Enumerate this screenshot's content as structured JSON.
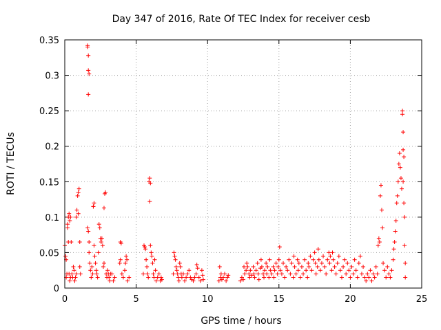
{
  "chart_data": {
    "type": "scatter",
    "title": "Day 347 of 2016, Rate Of TEC Index for receiver cesb",
    "xlabel": "GPS time / hours",
    "ylabel": "ROTI / TECUs",
    "xlim": [
      0,
      25
    ],
    "ylim": [
      0,
      0.35
    ],
    "xticks": [
      0,
      5,
      10,
      15,
      20,
      25
    ],
    "xtick_labels": [
      "0",
      "5",
      "10",
      "15",
      "20",
      "25"
    ],
    "yticks": [
      0,
      0.05,
      0.1,
      0.15,
      0.2,
      0.25,
      0.3,
      0.35
    ],
    "ytick_labels": [
      "0",
      "0.05",
      "0.1",
      "0.15",
      "0.2",
      "0.25",
      "0.3",
      "0.35"
    ],
    "grid": true,
    "marker": "+",
    "color": "#ff0000",
    "series": [
      {
        "name": "ROTI",
        "points": [
          [
            0.0,
            0.06
          ],
          [
            0.05,
            0.045
          ],
          [
            0.1,
            0.04
          ],
          [
            0.1,
            0.015
          ],
          [
            0.15,
            0.02
          ],
          [
            0.2,
            0.085
          ],
          [
            0.2,
            0.09
          ],
          [
            0.25,
            0.1
          ],
          [
            0.25,
            0.065
          ],
          [
            0.3,
            0.105
          ],
          [
            0.3,
            0.02
          ],
          [
            0.35,
            0.095
          ],
          [
            0.35,
            0.01
          ],
          [
            0.4,
            0.1
          ],
          [
            0.4,
            0.015
          ],
          [
            0.45,
            0.065
          ],
          [
            0.5,
            0.02
          ],
          [
            0.55,
            0.015
          ],
          [
            0.6,
            0.03
          ],
          [
            0.65,
            0.025
          ],
          [
            0.7,
            0.01
          ],
          [
            0.75,
            0.015
          ],
          [
            0.8,
            0.02
          ],
          [
            0.8,
            0.1
          ],
          [
            0.85,
            0.11
          ],
          [
            0.9,
            0.13
          ],
          [
            0.95,
            0.135
          ],
          [
            0.95,
            0.105
          ],
          [
            1.0,
            0.14
          ],
          [
            1.05,
            0.03
          ],
          [
            1.05,
            0.065
          ],
          [
            1.1,
            0.02
          ],
          [
            1.6,
            0.34
          ],
          [
            1.6,
            0.342
          ],
          [
            1.65,
            0.328
          ],
          [
            1.65,
            0.307
          ],
          [
            1.7,
            0.302
          ],
          [
            1.65,
            0.273
          ],
          [
            1.6,
            0.085
          ],
          [
            1.65,
            0.08
          ],
          [
            1.7,
            0.065
          ],
          [
            1.7,
            0.05
          ],
          [
            1.75,
            0.035
          ],
          [
            1.8,
            0.025
          ],
          [
            1.85,
            0.015
          ],
          [
            1.9,
            0.03
          ],
          [
            1.95,
            0.02
          ],
          [
            2.0,
            0.115
          ],
          [
            2.0,
            0.115
          ],
          [
            2.05,
            0.12
          ],
          [
            2.05,
            0.06
          ],
          [
            2.1,
            0.045
          ],
          [
            2.15,
            0.035
          ],
          [
            2.2,
            0.025
          ],
          [
            2.25,
            0.02
          ],
          [
            2.3,
            0.015
          ],
          [
            2.35,
            0.05
          ],
          [
            2.4,
            0.09
          ],
          [
            2.45,
            0.085
          ],
          [
            2.5,
            0.07
          ],
          [
            2.55,
            0.065
          ],
          [
            2.6,
            0.07
          ],
          [
            2.65,
            0.06
          ],
          [
            2.7,
            0.03
          ],
          [
            2.75,
            0.035
          ],
          [
            2.75,
            0.113
          ],
          [
            2.8,
            0.133
          ],
          [
            2.85,
            0.135
          ],
          [
            2.9,
            0.02
          ],
          [
            2.95,
            0.015
          ],
          [
            3.0,
            0.025
          ],
          [
            3.05,
            0.02
          ],
          [
            3.1,
            0.015
          ],
          [
            3.15,
            0.01
          ],
          [
            3.2,
            0.02
          ],
          [
            3.3,
            0.02
          ],
          [
            3.4,
            0.01
          ],
          [
            3.5,
            0.015
          ],
          [
            3.85,
            0.035
          ],
          [
            3.9,
            0.04
          ],
          [
            3.9,
            0.065
          ],
          [
            3.95,
            0.063
          ],
          [
            4.0,
            0.02
          ],
          [
            4.1,
            0.015
          ],
          [
            4.2,
            0.025
          ],
          [
            4.25,
            0.035
          ],
          [
            4.3,
            0.045
          ],
          [
            4.35,
            0.04
          ],
          [
            4.4,
            0.01
          ],
          [
            4.5,
            0.015
          ],
          [
            5.5,
            0.02
          ],
          [
            5.55,
            0.06
          ],
          [
            5.6,
            0.058
          ],
          [
            5.65,
            0.055
          ],
          [
            5.7,
            0.04
          ],
          [
            5.75,
            0.03
          ],
          [
            5.8,
            0.02
          ],
          [
            5.85,
            0.015
          ],
          [
            5.9,
            0.15
          ],
          [
            5.95,
            0.155
          ],
          [
            6.0,
            0.148
          ],
          [
            5.95,
            0.122
          ],
          [
            6.0,
            0.06
          ],
          [
            6.05,
            0.05
          ],
          [
            6.1,
            0.045
          ],
          [
            6.15,
            0.035
          ],
          [
            6.2,
            0.02
          ],
          [
            6.25,
            0.015
          ],
          [
            6.3,
            0.04
          ],
          [
            6.35,
            0.025
          ],
          [
            6.4,
            0.01
          ],
          [
            6.5,
            0.015
          ],
          [
            6.6,
            0.02
          ],
          [
            6.7,
            0.01
          ],
          [
            6.75,
            0.015
          ],
          [
            6.8,
            0.012
          ],
          [
            7.6,
            0.02
          ],
          [
            7.65,
            0.05
          ],
          [
            7.7,
            0.045
          ],
          [
            7.75,
            0.04
          ],
          [
            7.8,
            0.03
          ],
          [
            7.85,
            0.025
          ],
          [
            7.9,
            0.02
          ],
          [
            7.95,
            0.015
          ],
          [
            8.0,
            0.01
          ],
          [
            8.05,
            0.035
          ],
          [
            8.1,
            0.03
          ],
          [
            8.15,
            0.02
          ],
          [
            8.2,
            0.015
          ],
          [
            8.3,
            0.02
          ],
          [
            8.4,
            0.01
          ],
          [
            8.5,
            0.015
          ],
          [
            8.6,
            0.02
          ],
          [
            8.7,
            0.025
          ],
          [
            8.8,
            0.015
          ],
          [
            8.9,
            0.012
          ],
          [
            9.0,
            0.01
          ],
          [
            9.1,
            0.015
          ],
          [
            9.2,
            0.02
          ],
          [
            9.25,
            0.033
          ],
          [
            9.3,
            0.028
          ],
          [
            9.4,
            0.015
          ],
          [
            9.5,
            0.01
          ],
          [
            9.6,
            0.025
          ],
          [
            9.65,
            0.018
          ],
          [
            9.7,
            0.012
          ],
          [
            10.8,
            0.01
          ],
          [
            10.85,
            0.03
          ],
          [
            10.9,
            0.015
          ],
          [
            10.95,
            0.02
          ],
          [
            11.0,
            0.012
          ],
          [
            11.1,
            0.015
          ],
          [
            11.2,
            0.02
          ],
          [
            11.3,
            0.01
          ],
          [
            11.4,
            0.015
          ],
          [
            11.45,
            0.018
          ],
          [
            12.3,
            0.01
          ],
          [
            12.4,
            0.015
          ],
          [
            12.5,
            0.012
          ],
          [
            12.55,
            0.03
          ],
          [
            12.6,
            0.02
          ],
          [
            12.7,
            0.025
          ],
          [
            12.75,
            0.035
          ],
          [
            12.8,
            0.03
          ],
          [
            12.9,
            0.02
          ],
          [
            12.95,
            0.015
          ],
          [
            13.0,
            0.025
          ],
          [
            13.1,
            0.018
          ],
          [
            13.2,
            0.03
          ],
          [
            13.25,
            0.02
          ],
          [
            13.3,
            0.015
          ],
          [
            13.4,
            0.025
          ],
          [
            13.5,
            0.035
          ],
          [
            13.55,
            0.02
          ],
          [
            13.6,
            0.012
          ],
          [
            13.7,
            0.028
          ],
          [
            13.75,
            0.04
          ],
          [
            13.8,
            0.03
          ],
          [
            13.9,
            0.02
          ],
          [
            13.95,
            0.015
          ],
          [
            14.0,
            0.025
          ],
          [
            14.1,
            0.035
          ],
          [
            14.15,
            0.02
          ],
          [
            14.2,
            0.03
          ],
          [
            14.3,
            0.015
          ],
          [
            14.35,
            0.04
          ],
          [
            14.4,
            0.025
          ],
          [
            14.5,
            0.02
          ],
          [
            14.6,
            0.03
          ],
          [
            14.65,
            0.015
          ],
          [
            14.7,
            0.025
          ],
          [
            14.8,
            0.035
          ],
          [
            14.9,
            0.02
          ],
          [
            14.95,
            0.03
          ],
          [
            15.0,
            0.04
          ],
          [
            15.05,
            0.058
          ],
          [
            15.1,
            0.025
          ],
          [
            15.2,
            0.02
          ],
          [
            15.3,
            0.035
          ],
          [
            15.4,
            0.015
          ],
          [
            15.5,
            0.03
          ],
          [
            15.6,
            0.025
          ],
          [
            15.7,
            0.04
          ],
          [
            15.8,
            0.02
          ],
          [
            15.9,
            0.035
          ],
          [
            16.0,
            0.015
          ],
          [
            16.05,
            0.045
          ],
          [
            16.1,
            0.03
          ],
          [
            16.2,
            0.02
          ],
          [
            16.3,
            0.04
          ],
          [
            16.35,
            0.025
          ],
          [
            16.4,
            0.035
          ],
          [
            16.5,
            0.015
          ],
          [
            16.6,
            0.03
          ],
          [
            16.7,
            0.02
          ],
          [
            16.8,
            0.04
          ],
          [
            16.9,
            0.025
          ],
          [
            17.0,
            0.015
          ],
          [
            17.05,
            0.035
          ],
          [
            17.1,
            0.03
          ],
          [
            17.2,
            0.045
          ],
          [
            17.3,
            0.025
          ],
          [
            17.4,
            0.04
          ],
          [
            17.5,
            0.05
          ],
          [
            17.55,
            0.035
          ],
          [
            17.6,
            0.02
          ],
          [
            17.7,
            0.03
          ],
          [
            17.75,
            0.055
          ],
          [
            17.8,
            0.04
          ],
          [
            17.9,
            0.025
          ],
          [
            18.0,
            0.035
          ],
          [
            18.1,
            0.045
          ],
          [
            18.2,
            0.03
          ],
          [
            18.3,
            0.02
          ],
          [
            18.4,
            0.04
          ],
          [
            18.5,
            0.05
          ],
          [
            18.55,
            0.035
          ],
          [
            18.6,
            0.045
          ],
          [
            18.7,
            0.025
          ],
          [
            18.75,
            0.05
          ],
          [
            18.8,
            0.04
          ],
          [
            18.9,
            0.03
          ],
          [
            19.0,
            0.02
          ],
          [
            19.1,
            0.035
          ],
          [
            19.2,
            0.045
          ],
          [
            19.3,
            0.025
          ],
          [
            19.4,
            0.015
          ],
          [
            19.5,
            0.03
          ],
          [
            19.6,
            0.04
          ],
          [
            19.7,
            0.02
          ],
          [
            19.8,
            0.035
          ],
          [
            19.9,
            0.025
          ],
          [
            20.0,
            0.015
          ],
          [
            20.1,
            0.03
          ],
          [
            20.2,
            0.02
          ],
          [
            20.3,
            0.04
          ],
          [
            20.4,
            0.025
          ],
          [
            20.5,
            0.015
          ],
          [
            20.6,
            0.035
          ],
          [
            20.7,
            0.045
          ],
          [
            20.8,
            0.02
          ],
          [
            20.9,
            0.03
          ],
          [
            21.0,
            0.015
          ],
          [
            21.1,
            0.01
          ],
          [
            21.2,
            0.02
          ],
          [
            21.3,
            0.015
          ],
          [
            21.4,
            0.025
          ],
          [
            21.5,
            0.01
          ],
          [
            21.6,
            0.02
          ],
          [
            21.7,
            0.015
          ],
          [
            21.8,
            0.03
          ],
          [
            21.9,
            0.02
          ],
          [
            21.95,
            0.06
          ],
          [
            22.0,
            0.07
          ],
          [
            22.05,
            0.065
          ],
          [
            22.1,
            0.13
          ],
          [
            22.15,
            0.145
          ],
          [
            22.2,
            0.11
          ],
          [
            22.25,
            0.085
          ],
          [
            22.3,
            0.035
          ],
          [
            22.4,
            0.025
          ],
          [
            22.5,
            0.015
          ],
          [
            22.6,
            0.03
          ],
          [
            22.7,
            0.02
          ],
          [
            22.8,
            0.015
          ],
          [
            22.9,
            0.025
          ],
          [
            23.0,
            0.04
          ],
          [
            23.05,
            0.055
          ],
          [
            23.1,
            0.065
          ],
          [
            23.15,
            0.08
          ],
          [
            23.2,
            0.095
          ],
          [
            23.25,
            0.12
          ],
          [
            23.3,
            0.13
          ],
          [
            23.35,
            0.15
          ],
          [
            23.4,
            0.175
          ],
          [
            23.45,
            0.19
          ],
          [
            23.5,
            0.17
          ],
          [
            23.55,
            0.155
          ],
          [
            23.6,
            0.14
          ],
          [
            23.65,
            0.25
          ],
          [
            23.65,
            0.245
          ],
          [
            23.7,
            0.22
          ],
          [
            23.7,
            0.195
          ],
          [
            23.7,
            0.15
          ],
          [
            23.75,
            0.185
          ],
          [
            23.75,
            0.12
          ],
          [
            23.8,
            0.1
          ],
          [
            23.8,
            0.06
          ],
          [
            23.85,
            0.035
          ],
          [
            23.85,
            0.015
          ]
        ]
      }
    ]
  }
}
